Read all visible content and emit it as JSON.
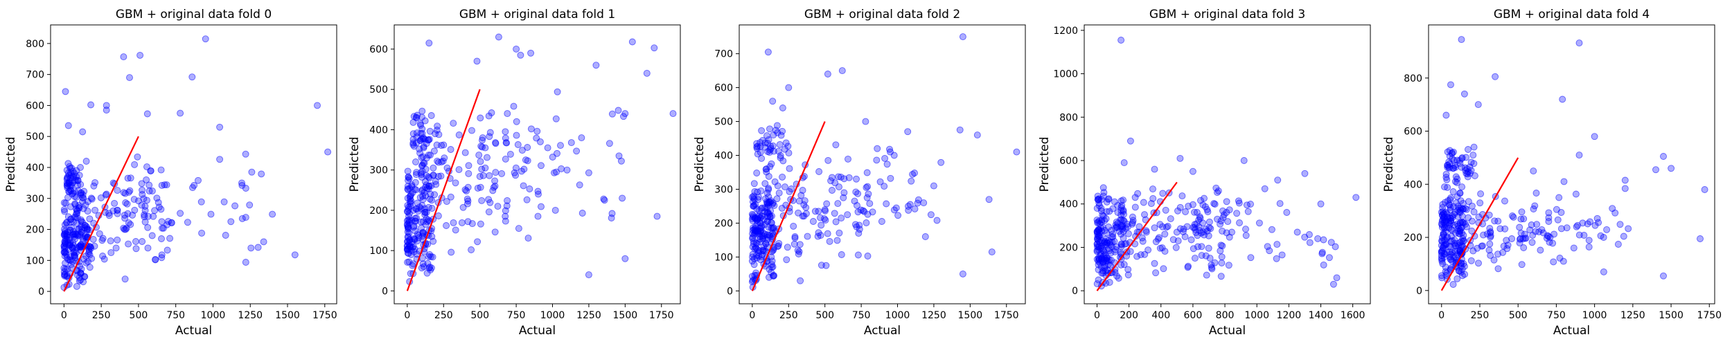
{
  "chart_data": [
    {
      "type": "scatter",
      "title": "GBM + original data fold 0",
      "xlabel": "Actual",
      "ylabel": "Predicted",
      "xlim": [
        -90,
        1830
      ],
      "ylim": [
        -40,
        860
      ],
      "xticks": [
        0,
        250,
        500,
        750,
        1000,
        1250,
        1500,
        1750
      ],
      "yticks": [
        0,
        100,
        200,
        300,
        400,
        500,
        600,
        700,
        800
      ],
      "identity_line": [
        [
          0,
          0
        ],
        [
          500,
          500
        ]
      ],
      "seed": 11,
      "points": [
        [
          950,
          815
        ],
        [
          510,
          762
        ],
        [
          400,
          757
        ],
        [
          440,
          690
        ],
        [
          860,
          692
        ],
        [
          10,
          645
        ],
        [
          180,
          602
        ],
        [
          285,
          600
        ],
        [
          285,
          585
        ],
        [
          1700,
          600
        ],
        [
          560,
          573
        ],
        [
          780,
          575
        ],
        [
          30,
          535
        ],
        [
          125,
          515
        ],
        [
          1045,
          530
        ],
        [
          1770,
          450
        ],
        [
          1260,
          385
        ],
        [
          1550,
          118
        ],
        [
          1340,
          160
        ],
        [
          1120,
          225
        ],
        [
          900,
          358
        ],
        [
          350,
          140
        ],
        [
          410,
          40
        ],
        [
          45,
          100
        ],
        [
          120,
          200
        ],
        [
          75,
          280
        ],
        [
          20,
          180
        ],
        [
          200,
          340
        ],
        [
          330,
          260
        ],
        [
          150,
          420
        ]
      ],
      "clusters": [
        {
          "n": 160,
          "x": [
            0,
            180
          ],
          "y": [
            0,
            330
          ]
        },
        {
          "n": 50,
          "x": [
            20,
            120
          ],
          "y": [
            300,
            420
          ]
        },
        {
          "n": 100,
          "x": [
            100,
            700
          ],
          "y": [
            60,
            400
          ]
        },
        {
          "n": 55,
          "x": [
            400,
            1400
          ],
          "y": [
            90,
            470
          ]
        }
      ]
    },
    {
      "type": "scatter",
      "title": "GBM + original data fold 1",
      "xlabel": "Actual",
      "ylabel": "Predicted",
      "xlim": [
        -90,
        1880
      ],
      "ylim": [
        -32,
        660
      ],
      "xticks": [
        0,
        250,
        500,
        750,
        1000,
        1250,
        1500,
        1750
      ],
      "yticks": [
        0,
        100,
        200,
        300,
        400,
        500,
        600
      ],
      "identity_line": [
        [
          0,
          0
        ],
        [
          500,
          500
        ]
      ],
      "seed": 23,
      "points": [
        [
          630,
          630
        ],
        [
          150,
          615
        ],
        [
          750,
          600
        ],
        [
          1550,
          618
        ],
        [
          1700,
          603
        ],
        [
          850,
          590
        ],
        [
          780,
          585
        ],
        [
          1650,
          540
        ],
        [
          1830,
          440
        ],
        [
          480,
          570
        ],
        [
          1300,
          560
        ],
        [
          1500,
          440
        ],
        [
          1200,
          380
        ],
        [
          1100,
          300
        ],
        [
          1480,
          230
        ],
        [
          1720,
          185
        ],
        [
          1500,
          80
        ],
        [
          1250,
          40
        ],
        [
          1020,
          200
        ],
        [
          900,
          185
        ]
      ],
      "clusters": [
        {
          "n": 160,
          "x": [
            0,
            180
          ],
          "y": [
            0,
            320
          ]
        },
        {
          "n": 50,
          "x": [
            40,
            250
          ],
          "y": [
            300,
            460
          ]
        },
        {
          "n": 110,
          "x": [
            100,
            850
          ],
          "y": [
            80,
            460
          ]
        },
        {
          "n": 55,
          "x": [
            500,
            1500
          ],
          "y": [
            150,
            500
          ]
        }
      ]
    },
    {
      "type": "scatter",
      "title": "GBM + original data fold 2",
      "xlabel": "Actual",
      "ylabel": "Predicted",
      "xlim": [
        -90,
        1880
      ],
      "ylim": [
        -38,
        785
      ],
      "xticks": [
        0,
        250,
        500,
        750,
        1000,
        1250,
        1500,
        1750
      ],
      "yticks": [
        0,
        100,
        200,
        300,
        400,
        500,
        600,
        700
      ],
      "identity_line": [
        [
          0,
          0
        ],
        [
          500,
          500
        ]
      ],
      "seed": 37,
      "points": [
        [
          1450,
          750
        ],
        [
          110,
          705
        ],
        [
          620,
          650
        ],
        [
          520,
          640
        ],
        [
          250,
          600
        ],
        [
          140,
          560
        ],
        [
          210,
          540
        ],
        [
          780,
          500
        ],
        [
          1070,
          470
        ],
        [
          1820,
          410
        ],
        [
          1430,
          475
        ],
        [
          1550,
          460
        ],
        [
          1630,
          270
        ],
        [
          1450,
          50
        ],
        [
          1650,
          115
        ],
        [
          1250,
          310
        ],
        [
          1180,
          260
        ],
        [
          950,
          410
        ],
        [
          860,
          420
        ],
        [
          330,
          30
        ]
      ],
      "clusters": [
        {
          "n": 160,
          "x": [
            0,
            150
          ],
          "y": [
            0,
            330
          ]
        },
        {
          "n": 45,
          "x": [
            30,
            260
          ],
          "y": [
            330,
            500
          ]
        },
        {
          "n": 110,
          "x": [
            100,
            800
          ],
          "y": [
            60,
            400
          ]
        },
        {
          "n": 50,
          "x": [
            500,
            1300
          ],
          "y": [
            150,
            450
          ]
        }
      ]
    },
    {
      "type": "scatter",
      "title": "GBM + original data fold 3",
      "xlabel": "Actual",
      "ylabel": "Predicted",
      "xlim": [
        -80,
        1710
      ],
      "ylim": [
        -60,
        1225
      ],
      "xticks": [
        0,
        200,
        400,
        600,
        800,
        1000,
        1200,
        1400,
        1600
      ],
      "yticks": [
        0,
        200,
        400,
        600,
        800,
        1000,
        1200
      ],
      "identity_line": [
        [
          0,
          0
        ],
        [
          500,
          500
        ]
      ],
      "seed": 53,
      "points": [
        [
          150,
          1155
        ],
        [
          210,
          690
        ],
        [
          170,
          590
        ],
        [
          520,
          610
        ],
        [
          920,
          600
        ],
        [
          600,
          550
        ],
        [
          1620,
          430
        ],
        [
          1500,
          60
        ],
        [
          1480,
          30
        ],
        [
          1300,
          540
        ],
        [
          1400,
          400
        ],
        [
          1130,
          510
        ],
        [
          760,
          460
        ],
        [
          1050,
          470
        ],
        [
          360,
          560
        ],
        [
          40,
          475
        ]
      ],
      "clusters": [
        {
          "n": 170,
          "x": [
            0,
            180
          ],
          "y": [
            0,
            460
          ]
        },
        {
          "n": 130,
          "x": [
            150,
            850
          ],
          "y": [
            50,
            500
          ]
        },
        {
          "n": 60,
          "x": [
            600,
            1500
          ],
          "y": [
            100,
            450
          ]
        }
      ]
    },
    {
      "type": "scatter",
      "title": "GBM + original data fold 4",
      "xlabel": "Actual",
      "ylabel": "Predicted",
      "xlim": [
        -85,
        1785
      ],
      "ylim": [
        -50,
        1000
      ],
      "xticks": [
        0,
        250,
        500,
        750,
        1000,
        1250,
        1500,
        1750
      ],
      "yticks": [
        0,
        200,
        400,
        600,
        800
      ],
      "identity_line": [
        [
          0,
          0
        ],
        [
          500,
          500
        ]
      ],
      "seed": 71,
      "points": [
        [
          130,
          945
        ],
        [
          900,
          932
        ],
        [
          350,
          805
        ],
        [
          60,
          775
        ],
        [
          150,
          740
        ],
        [
          790,
          720
        ],
        [
          240,
          700
        ],
        [
          30,
          660
        ],
        [
          1000,
          580
        ],
        [
          900,
          510
        ],
        [
          1450,
          505
        ],
        [
          1500,
          460
        ],
        [
          1400,
          455
        ],
        [
          1720,
          380
        ],
        [
          1690,
          195
        ],
        [
          1450,
          55
        ],
        [
          1060,
          70
        ],
        [
          1200,
          415
        ],
        [
          800,
          410
        ],
        [
          600,
          450
        ]
      ],
      "clusters": [
        {
          "n": 170,
          "x": [
            0,
            160
          ],
          "y": [
            0,
            400
          ]
        },
        {
          "n": 50,
          "x": [
            30,
            260
          ],
          "y": [
            380,
            560
          ]
        },
        {
          "n": 100,
          "x": [
            120,
            800
          ],
          "y": [
            60,
            380
          ]
        },
        {
          "n": 45,
          "x": [
            500,
            1300
          ],
          "y": [
            120,
            400
          ]
        }
      ]
    }
  ]
}
